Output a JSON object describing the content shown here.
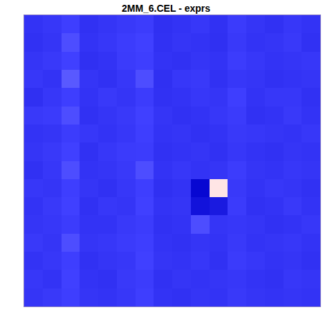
{
  "chart_data": {
    "type": "heatmap",
    "title": "2MM_6.CEL - exprs",
    "tick_labels": false,
    "zlim": [
      0,
      1
    ],
    "cells": [
      [
        0.28,
        0.3,
        0.34,
        0.27,
        0.29,
        0.31,
        0.33,
        0.26,
        0.28,
        0.3,
        0.27,
        0.32,
        0.29,
        0.27,
        0.3,
        0.28
      ],
      [
        0.27,
        0.29,
        0.36,
        0.28,
        0.3,
        0.33,
        0.35,
        0.27,
        0.29,
        0.28,
        0.26,
        0.31,
        0.28,
        0.29,
        0.31,
        0.27
      ],
      [
        0.29,
        0.31,
        0.35,
        0.26,
        0.28,
        0.32,
        0.34,
        0.28,
        0.27,
        0.29,
        0.28,
        0.33,
        0.3,
        0.28,
        0.29,
        0.3
      ],
      [
        0.3,
        0.28,
        0.37,
        0.29,
        0.27,
        0.3,
        0.36,
        0.26,
        0.3,
        0.31,
        0.27,
        0.3,
        0.29,
        0.27,
        0.28,
        0.29
      ],
      [
        0.26,
        0.3,
        0.34,
        0.28,
        0.31,
        0.29,
        0.33,
        0.27,
        0.28,
        0.3,
        0.29,
        0.34,
        0.28,
        0.3,
        0.3,
        0.27
      ],
      [
        0.31,
        0.32,
        0.36,
        0.27,
        0.29,
        0.31,
        0.35,
        0.29,
        0.27,
        0.28,
        0.3,
        0.32,
        0.27,
        0.28,
        0.31,
        0.28
      ],
      [
        0.28,
        0.29,
        0.33,
        0.3,
        0.28,
        0.3,
        0.34,
        0.28,
        0.29,
        0.27,
        0.28,
        0.31,
        0.3,
        0.29,
        0.28,
        0.3
      ],
      [
        0.29,
        0.31,
        0.35,
        0.27,
        0.3,
        0.32,
        0.33,
        0.27,
        0.28,
        0.29,
        0.27,
        0.3,
        0.28,
        0.27,
        0.29,
        0.28
      ],
      [
        0.27,
        0.3,
        0.36,
        0.28,
        0.29,
        0.31,
        0.36,
        0.28,
        0.3,
        0.28,
        0.29,
        0.33,
        0.29,
        0.28,
        0.3,
        0.29
      ],
      [
        0.3,
        0.29,
        0.34,
        0.29,
        0.27,
        0.3,
        0.34,
        0.26,
        0.28,
        0.04,
        0.55,
        0.31,
        0.28,
        0.3,
        0.29,
        0.27
      ],
      [
        0.28,
        0.31,
        0.35,
        0.27,
        0.3,
        0.29,
        0.35,
        0.28,
        0.29,
        0.1,
        0.14,
        0.32,
        0.27,
        0.28,
        0.31,
        0.28
      ],
      [
        0.29,
        0.3,
        0.33,
        0.28,
        0.28,
        0.31,
        0.33,
        0.27,
        0.28,
        0.36,
        0.29,
        0.3,
        0.29,
        0.27,
        0.28,
        0.3
      ],
      [
        0.31,
        0.29,
        0.36,
        0.29,
        0.3,
        0.32,
        0.34,
        0.28,
        0.27,
        0.29,
        0.28,
        0.31,
        0.28,
        0.29,
        0.3,
        0.28
      ],
      [
        0.28,
        0.3,
        0.34,
        0.27,
        0.29,
        0.3,
        0.35,
        0.29,
        0.28,
        0.3,
        0.27,
        0.32,
        0.3,
        0.28,
        0.29,
        0.27
      ],
      [
        0.3,
        0.28,
        0.35,
        0.28,
        0.27,
        0.31,
        0.33,
        0.27,
        0.29,
        0.28,
        0.29,
        0.3,
        0.28,
        0.27,
        0.3,
        0.29
      ],
      [
        0.29,
        0.31,
        0.34,
        0.29,
        0.28,
        0.3,
        0.34,
        0.28,
        0.27,
        0.29,
        0.28,
        0.31,
        0.29,
        0.28,
        0.29,
        0.28
      ]
    ]
  }
}
